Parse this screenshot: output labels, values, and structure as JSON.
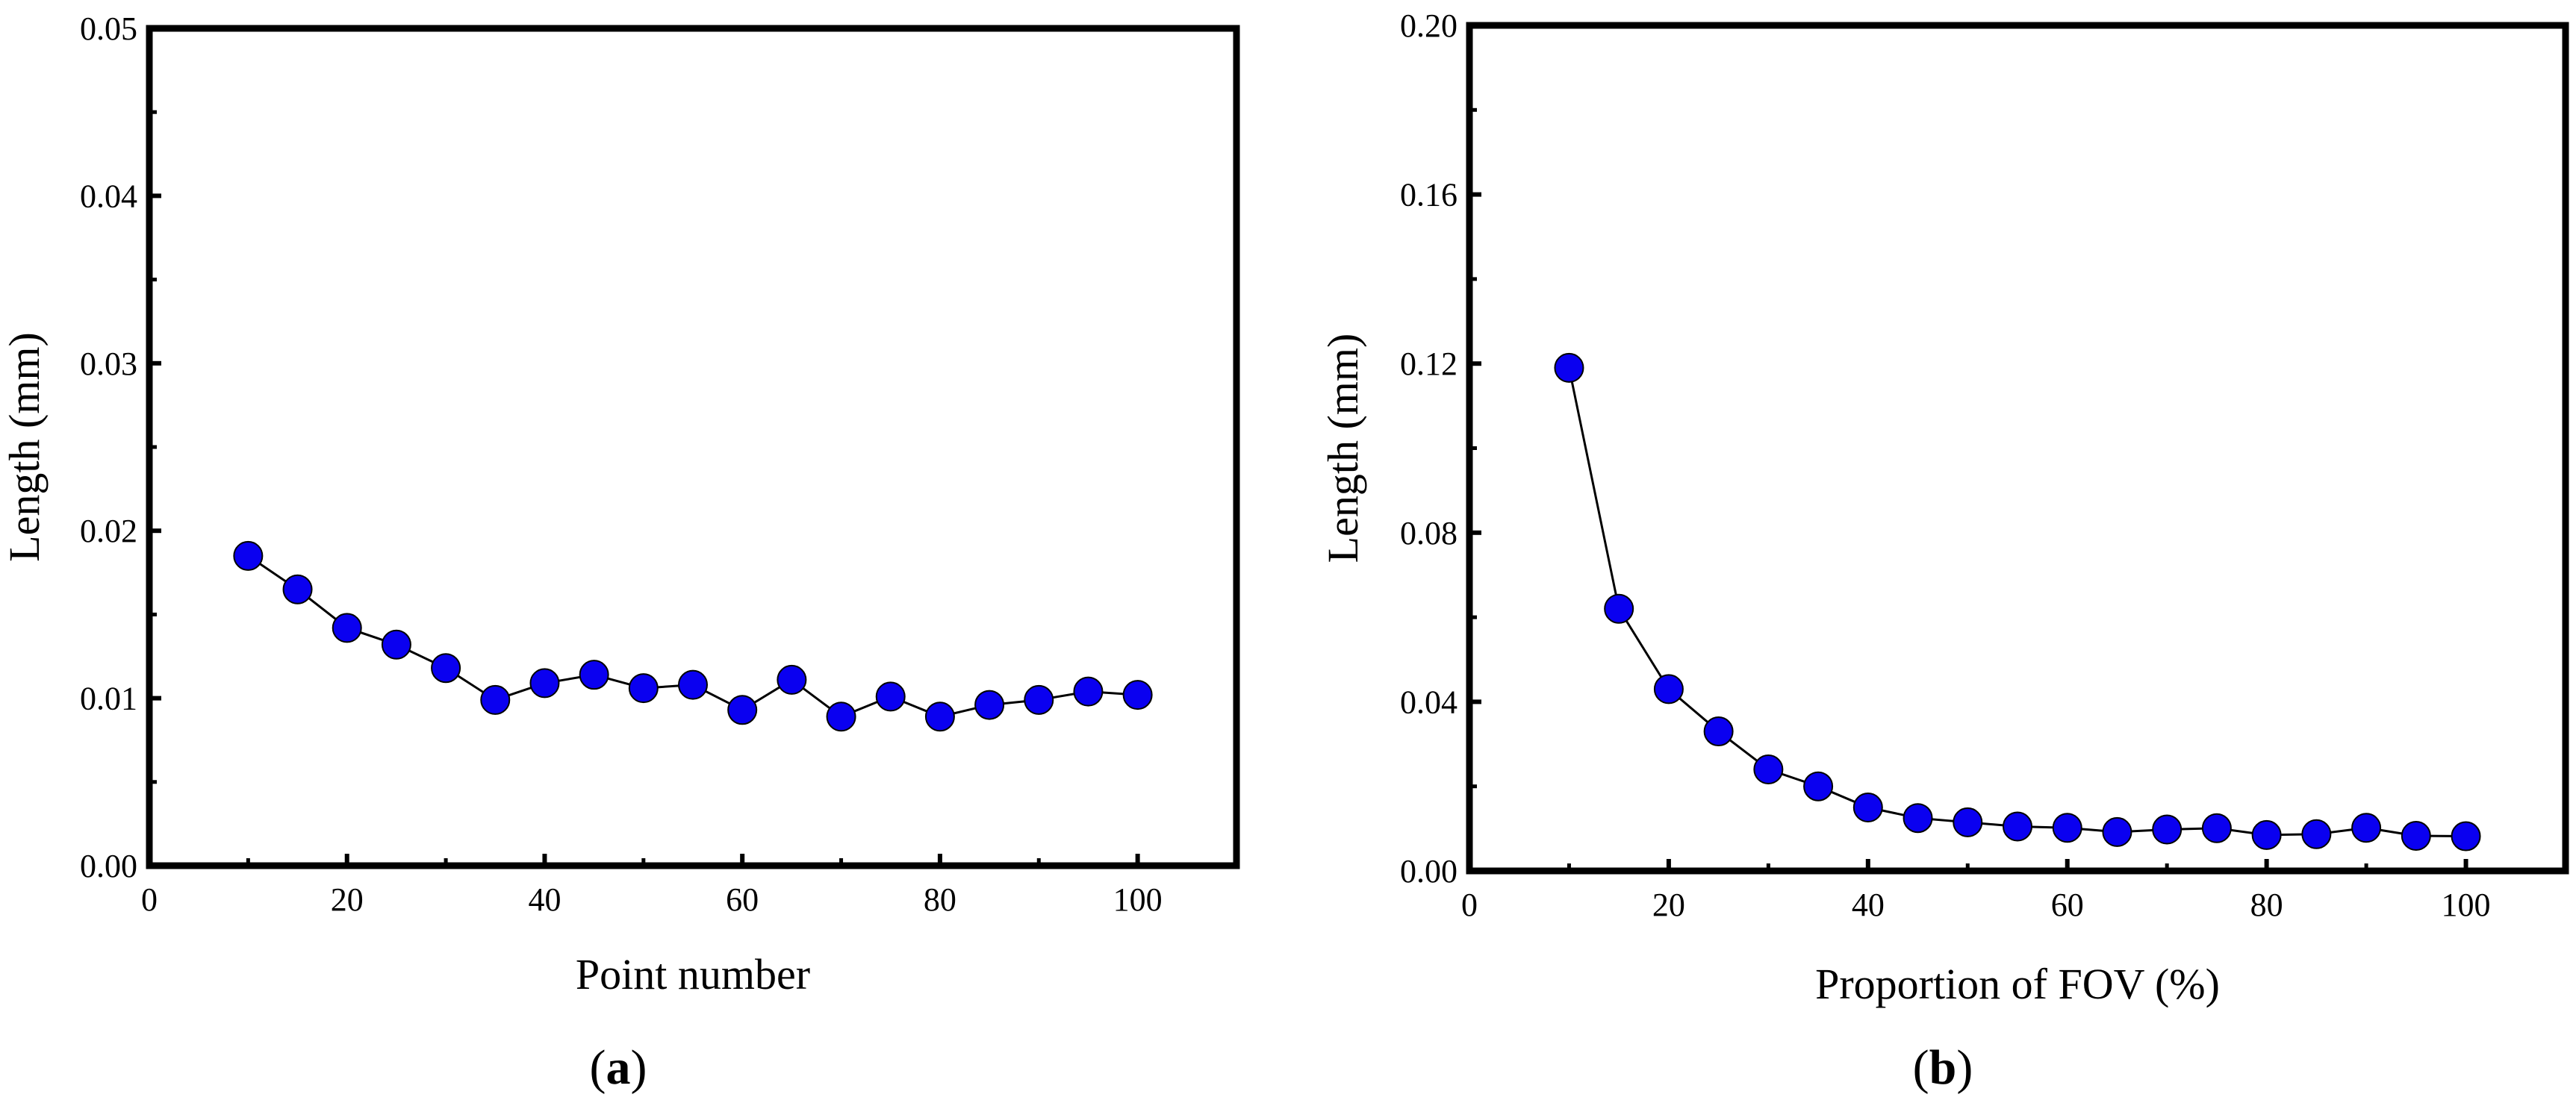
{
  "chart_data": [
    {
      "type": "line",
      "panel_label_open": "(",
      "panel_label_letter": "a",
      "panel_label_close": ")",
      "xlabel": "Point number",
      "ylabel": "Length (mm)",
      "xlim": [
        0,
        110
      ],
      "ylim": [
        0,
        0.05
      ],
      "x_ticks": [
        0,
        20,
        40,
        60,
        80,
        100
      ],
      "x_tick_labels": [
        "0",
        "20",
        "40",
        "60",
        "80",
        "100"
      ],
      "y_ticks": [
        0,
        0.01,
        0.02,
        0.03,
        0.04,
        0.05
      ],
      "y_tick_labels": [
        "0.00",
        "0.01",
        "0.02",
        "0.03",
        "0.04",
        "0.05"
      ],
      "marker_color": "#0a00f0",
      "line_color": "#000000",
      "series": [
        {
          "name": "Length",
          "x": [
            10,
            15,
            20,
            25,
            30,
            35,
            40,
            45,
            50,
            55,
            60,
            65,
            70,
            75,
            80,
            85,
            90,
            95,
            100
          ],
          "y": [
            0.0185,
            0.0165,
            0.0142,
            0.0132,
            0.0118,
            0.0099,
            0.0109,
            0.0114,
            0.0106,
            0.0108,
            0.0093,
            0.0111,
            0.0089,
            0.0101,
            0.0089,
            0.0096,
            0.0099,
            0.0104,
            0.0102
          ]
        }
      ]
    },
    {
      "type": "line",
      "panel_label_open": "(",
      "panel_label_letter": "b",
      "panel_label_close": ")",
      "xlabel": "Proportion of FOV (%)",
      "ylabel": "Length (mm)",
      "xlim": [
        0,
        110
      ],
      "ylim": [
        0,
        0.2
      ],
      "x_ticks": [
        0,
        20,
        40,
        60,
        80,
        100
      ],
      "x_tick_labels": [
        "0",
        "20",
        "40",
        "60",
        "80",
        "100"
      ],
      "y_ticks": [
        0,
        0.04,
        0.08,
        0.12,
        0.16,
        0.2
      ],
      "y_tick_labels": [
        "0.00",
        "0.04",
        "0.08",
        "0.12",
        "0.16",
        "0.20"
      ],
      "marker_color": "#0a00f0",
      "line_color": "#000000",
      "series": [
        {
          "name": "Length",
          "x": [
            10,
            15,
            20,
            25,
            30,
            35,
            40,
            45,
            50,
            55,
            60,
            65,
            70,
            75,
            80,
            85,
            90,
            95,
            100
          ],
          "y": [
            0.119,
            0.062,
            0.043,
            0.033,
            0.024,
            0.02,
            0.015,
            0.0125,
            0.0115,
            0.0105,
            0.0102,
            0.0092,
            0.0098,
            0.0101,
            0.0085,
            0.0087,
            0.0102,
            0.0083,
            0.0082
          ]
        }
      ]
    }
  ]
}
